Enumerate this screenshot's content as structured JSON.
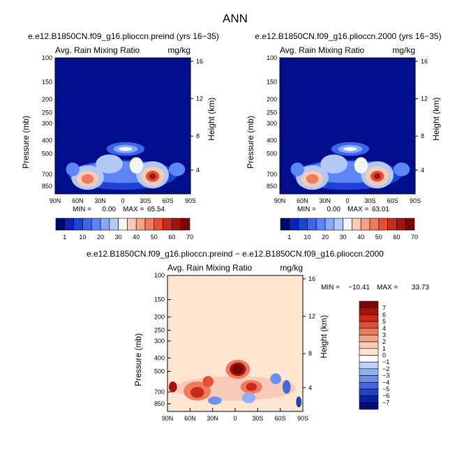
{
  "figure": {
    "title": "ANN"
  },
  "colors": {
    "frame": "#000000",
    "fill_base_top": "#000e8e",
    "fill_base_diff": "#fde5d2"
  },
  "chart_data": [
    {
      "type": "contour",
      "id": "preind",
      "title": "e.e12.B1850CN.f09_g16.plioccn.preind (yrs 16−35)",
      "subtitle_left": "Avg. Rain Mixing Ratio",
      "subtitle_right": "mg/kg",
      "ylabel": "Pressure (mb)",
      "y2label": "Height (km)",
      "x_ticks": [
        "90N",
        "60N",
        "30N",
        "0",
        "30S",
        "60S",
        "90S"
      ],
      "y_ticks": [
        "100",
        "150",
        "200",
        "250",
        "300",
        "400",
        "500",
        "700",
        "850"
      ],
      "y2_ticks": [
        "16",
        "12",
        "8",
        "4"
      ],
      "min_label": "MIN =",
      "min": "0.00",
      "max_label": "MAX =",
      "max": "65.54"
    },
    {
      "type": "contour",
      "id": "p2000",
      "title": "e.e12.B1850CN.f09_g16.plioccn.2000 (yrs 16−35)",
      "subtitle_left": "Avg. Rain Mixing Ratio",
      "subtitle_right": "mg/kg",
      "ylabel": "Pressure (mb)",
      "y2label": "Height (km)",
      "x_ticks": [
        "90N",
        "60N",
        "30N",
        "0",
        "30S",
        "60S",
        "90S"
      ],
      "y_ticks": [
        "100",
        "150",
        "200",
        "250",
        "300",
        "400",
        "500",
        "700",
        "850"
      ],
      "y2_ticks": [
        "16",
        "12",
        "8",
        "4"
      ],
      "min_label": "MIN =",
      "min": "0.00",
      "max_label": "MAX =",
      "max": "63.01"
    },
    {
      "type": "contour",
      "id": "diff",
      "title": "e.e12.B1850CN.f09_g16.plioccn.preind − e.e12.B1850CN.f09_g16.plioccn.2000",
      "subtitle_left": "Avg. Rain Mixing Ratio",
      "subtitle_right": "mg/kg",
      "ylabel": "Pressure (mb)",
      "y2label": "Height (km)",
      "x_ticks": [
        "90N",
        "60N",
        "30N",
        "0",
        "30S",
        "60S",
        "90S"
      ],
      "y_ticks": [
        "100",
        "150",
        "200",
        "250",
        "300",
        "400",
        "500",
        "700",
        "850"
      ],
      "y2_ticks": [
        "16",
        "12",
        "8",
        "4"
      ],
      "min_label": "MIN =",
      "min": "−10.41",
      "max_label": "MAX =",
      "max": "33.73"
    }
  ],
  "colorbar_top": {
    "labels": [
      "1",
      "10",
      "20",
      "30",
      "40",
      "50",
      "60",
      "70"
    ],
    "colors": [
      "#00076e",
      "#0a22b4",
      "#1f42d6",
      "#3b66ec",
      "#5c86f5",
      "#86a8f7",
      "#b3c8f5",
      "#f5f5f5",
      "#f8cbb8",
      "#f6a38a",
      "#f07a5c",
      "#e54e35",
      "#c92a1c",
      "#a31410",
      "#7a0606"
    ]
  },
  "colorbar_diff": {
    "labels": [
      "7",
      "6",
      "5",
      "4",
      "3",
      "2",
      "1",
      "0",
      "−1",
      "−2",
      "−3",
      "−4",
      "−5",
      "−6",
      "−7"
    ],
    "colors": [
      "#7a0606",
      "#a31410",
      "#c92a1c",
      "#e54e35",
      "#f07a5c",
      "#f6a38a",
      "#f8cbb8",
      "#fde5d2",
      "#ffffff",
      "#bcd2f5",
      "#90b0f4",
      "#6a90f0",
      "#4266dc",
      "#2443bb",
      "#0a1f9a",
      "#000d74"
    ]
  }
}
